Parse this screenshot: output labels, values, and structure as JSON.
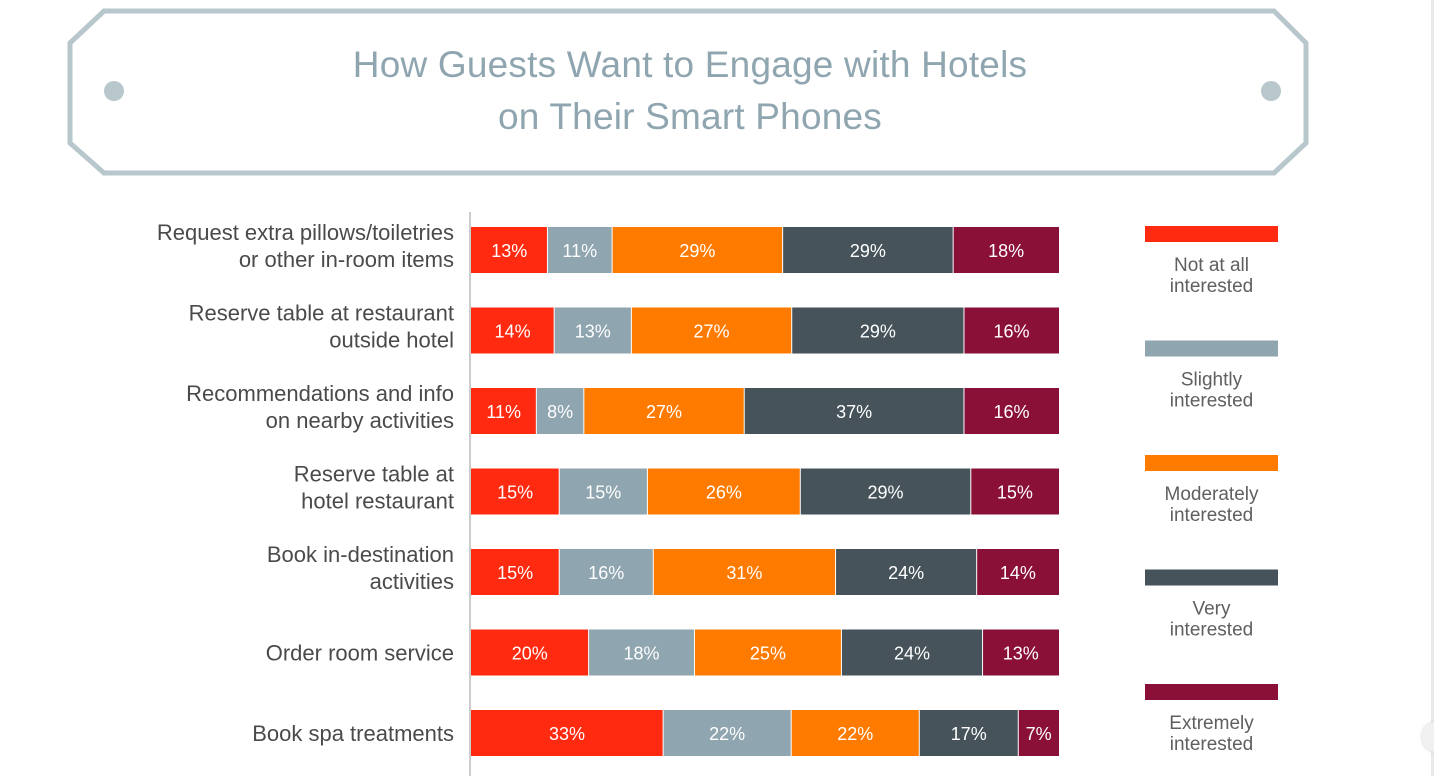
{
  "title": {
    "line1": "How Guests Want to Engage with Hotels",
    "line2": "on Their Smart Phones"
  },
  "colors": {
    "frame": "#b7c7cc",
    "not_at_all": "#ff2a10",
    "slightly": "#8fa5af",
    "moderately": "#ff7b00",
    "very": "#46535a",
    "extremely": "#8a1038",
    "axis": "#cccccc"
  },
  "chart_data": {
    "type": "bar",
    "orientation": "horizontal-stacked-100",
    "title": "How Guests Want to Engage with Hotels on Their Smart Phones",
    "categories": [
      [
        "Request extra pillows/toiletries",
        "or other in-room items"
      ],
      [
        "Reserve table at restaurant",
        "outside hotel"
      ],
      [
        "Recommendations and info",
        "on nearby activities"
      ],
      [
        "Reserve table at",
        "hotel restaurant"
      ],
      [
        "Book in-destination",
        "activities"
      ],
      [
        "Order room service"
      ],
      [
        "Book spa treatments"
      ]
    ],
    "series": [
      {
        "name": "Not at all interested",
        "legend": [
          "Not at all",
          "interested"
        ],
        "color_key": "not_at_all",
        "values": [
          13,
          14,
          11,
          15,
          15,
          20,
          33
        ]
      },
      {
        "name": "Slightly interested",
        "legend": [
          "Slightly",
          "interested"
        ],
        "color_key": "slightly",
        "values": [
          11,
          13,
          8,
          15,
          16,
          18,
          22
        ]
      },
      {
        "name": "Moderately interested",
        "legend": [
          "Moderately",
          "interested"
        ],
        "color_key": "moderately",
        "values": [
          29,
          27,
          27,
          26,
          31,
          25,
          22
        ]
      },
      {
        "name": "Very interested",
        "legend": [
          "Very",
          "interested"
        ],
        "color_key": "very",
        "values": [
          29,
          29,
          37,
          29,
          24,
          24,
          17
        ]
      },
      {
        "name": "Extremely interested",
        "legend": [
          "Extremely",
          "interested"
        ],
        "color_key": "extremely",
        "values": [
          18,
          16,
          16,
          15,
          14,
          13,
          7
        ]
      }
    ],
    "value_suffix": "%",
    "xlim": [
      0,
      100
    ],
    "legend_position": "right"
  }
}
